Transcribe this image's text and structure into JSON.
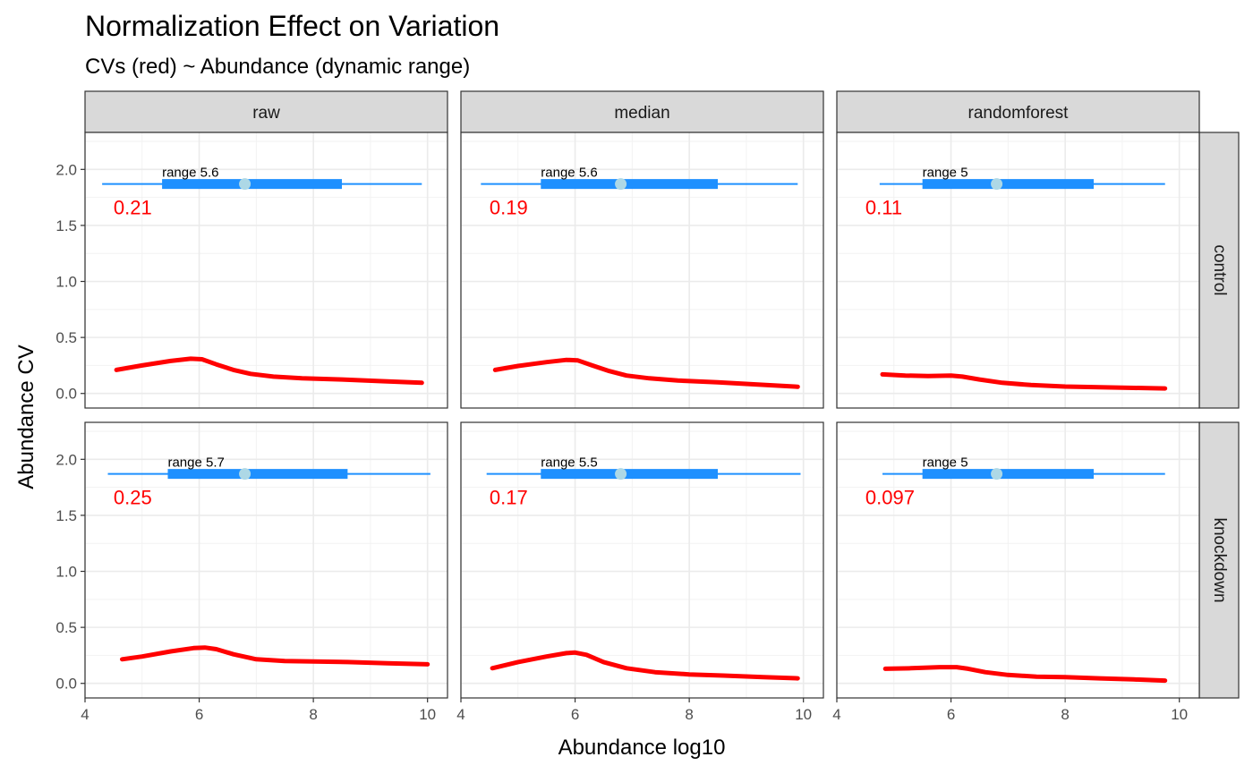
{
  "chart_data": {
    "type": "line",
    "title": "Normalization Effect on Variation",
    "subtitle": "CVs (red) ~ Abundance (dynamic range)",
    "xlabel": "Abundance log10",
    "ylabel": "Abundance CV",
    "xlim": [
      4,
      10.35
    ],
    "ylim": [
      -0.13,
      2.33
    ],
    "x_ticks": [
      4,
      6,
      8,
      10
    ],
    "y_ticks": [
      0.0,
      0.5,
      1.0,
      1.5,
      2.0
    ],
    "x_tick_labels": [
      "4",
      "6",
      "8",
      "10"
    ],
    "y_tick_labels": [
      "0.0",
      "0.5",
      "1.0",
      "1.5",
      "2.0"
    ],
    "grid": true,
    "columns": [
      "raw",
      "median",
      "randomforest"
    ],
    "rows": [
      "control",
      "knockdown"
    ],
    "colors": {
      "cv_line": "#ff0000",
      "range_bar": "#1e90ff",
      "median_point": "#add8e6",
      "strip_fill": "#d9d9d9"
    },
    "panels": [
      {
        "column": "raw",
        "row": "control",
        "cv_label": "0.21",
        "cv_label_pos": [
          4.5,
          1.6
        ],
        "range_label": "range 5.6",
        "range": {
          "y": 1.87,
          "min": 4.3,
          "max": 9.9,
          "iqr": [
            5.35,
            8.5
          ],
          "median": 6.8
        },
        "cv_curve": {
          "x": [
            4.55,
            5.0,
            5.5,
            5.85,
            6.05,
            6.3,
            6.6,
            6.9,
            7.3,
            7.8,
            8.5,
            9.2,
            9.9
          ],
          "y": [
            0.21,
            0.25,
            0.29,
            0.31,
            0.305,
            0.26,
            0.21,
            0.175,
            0.15,
            0.135,
            0.125,
            0.11,
            0.095
          ]
        }
      },
      {
        "column": "median",
        "row": "control",
        "cv_label": "0.19",
        "cv_label_pos": [
          4.5,
          1.6
        ],
        "range_label": "range 5.6",
        "range": {
          "y": 1.87,
          "min": 4.35,
          "max": 9.9,
          "iqr": [
            5.4,
            8.5
          ],
          "median": 6.8
        },
        "cv_curve": {
          "x": [
            4.6,
            5.0,
            5.5,
            5.85,
            6.05,
            6.3,
            6.6,
            6.9,
            7.3,
            7.8,
            8.5,
            9.2,
            9.9
          ],
          "y": [
            0.21,
            0.245,
            0.28,
            0.3,
            0.295,
            0.25,
            0.2,
            0.16,
            0.135,
            0.115,
            0.1,
            0.08,
            0.06
          ]
        }
      },
      {
        "column": "randomforest",
        "row": "control",
        "cv_label": "0.11",
        "cv_label_pos": [
          4.5,
          1.6
        ],
        "range_label": "range 5",
        "range": {
          "y": 1.87,
          "min": 4.75,
          "max": 9.75,
          "iqr": [
            5.5,
            8.5
          ],
          "median": 6.8
        },
        "cv_curve": {
          "x": [
            4.8,
            5.2,
            5.6,
            6.0,
            6.2,
            6.5,
            6.9,
            7.4,
            8.0,
            8.6,
            9.2,
            9.75
          ],
          "y": [
            0.17,
            0.16,
            0.155,
            0.16,
            0.15,
            0.125,
            0.095,
            0.075,
            0.062,
            0.055,
            0.05,
            0.045
          ]
        }
      },
      {
        "column": "raw",
        "row": "knockdown",
        "cv_label": "0.25",
        "cv_label_pos": [
          4.5,
          1.6
        ],
        "range_label": "range 5.7",
        "range": {
          "y": 1.87,
          "min": 4.4,
          "max": 10.05,
          "iqr": [
            5.45,
            8.6
          ],
          "median": 6.8
        },
        "cv_curve": {
          "x": [
            4.65,
            5.0,
            5.5,
            5.9,
            6.1,
            6.3,
            6.6,
            7.0,
            7.5,
            8.0,
            8.6,
            9.3,
            10.0
          ],
          "y": [
            0.215,
            0.24,
            0.285,
            0.315,
            0.32,
            0.305,
            0.26,
            0.215,
            0.2,
            0.195,
            0.19,
            0.18,
            0.17
          ]
        }
      },
      {
        "column": "median",
        "row": "knockdown",
        "cv_label": "0.17",
        "cv_label_pos": [
          4.5,
          1.6
        ],
        "range_label": "range 5.5",
        "range": {
          "y": 1.87,
          "min": 4.45,
          "max": 9.95,
          "iqr": [
            5.4,
            8.5
          ],
          "median": 6.8
        },
        "cv_curve": {
          "x": [
            4.55,
            5.0,
            5.5,
            5.85,
            6.0,
            6.2,
            6.5,
            6.9,
            7.4,
            8.0,
            8.6,
            9.3,
            9.9
          ],
          "y": [
            0.135,
            0.19,
            0.24,
            0.27,
            0.275,
            0.255,
            0.19,
            0.135,
            0.1,
            0.08,
            0.07,
            0.055,
            0.045
          ]
        }
      },
      {
        "column": "randomforest",
        "row": "knockdown",
        "cv_label": "0.097",
        "cv_label_pos": [
          4.5,
          1.6
        ],
        "range_label": "range 5",
        "range": {
          "y": 1.87,
          "min": 4.8,
          "max": 9.75,
          "iqr": [
            5.5,
            8.5
          ],
          "median": 6.8
        },
        "cv_curve": {
          "x": [
            4.85,
            5.3,
            5.8,
            6.1,
            6.3,
            6.6,
            7.0,
            7.5,
            8.0,
            8.6,
            9.2,
            9.75
          ],
          "y": [
            0.13,
            0.135,
            0.145,
            0.145,
            0.13,
            0.1,
            0.075,
            0.06,
            0.055,
            0.045,
            0.035,
            0.025
          ]
        }
      }
    ]
  }
}
